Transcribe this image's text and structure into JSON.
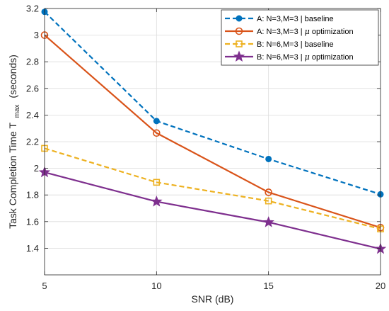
{
  "chart_data": {
    "type": "line",
    "title": "",
    "xlabel": "SNR (dB)",
    "ylabel_main": "Task Completion Time T",
    "ylabel_sub": "max",
    "ylabel_unit": "(seconds)",
    "x": [
      5,
      10,
      15,
      20
    ],
    "xlim": [
      5,
      20
    ],
    "ylim": [
      1.2,
      3.2
    ],
    "xticks": [
      "5",
      "10",
      "15",
      "20"
    ],
    "yticks": [
      "1.4",
      "1.6",
      "1.8",
      "2",
      "2.2",
      "2.4",
      "2.6",
      "2.8",
      "3",
      "3.2"
    ],
    "grid": true,
    "legend_position": "top-right",
    "series": [
      {
        "legend_prefix": "A: N=3,M=3 | ",
        "legend_mu": "",
        "legend_suffix": "baseline",
        "values": [
          3.175,
          2.355,
          2.07,
          1.805
        ],
        "color": "#0072BD",
        "dash": "dashed",
        "marker": "dot"
      },
      {
        "legend_prefix": "A: N=3,M=3 | ",
        "legend_mu": "μ",
        "legend_suffix": " optimization",
        "values": [
          3.0,
          2.265,
          1.82,
          1.555
        ],
        "color": "#D95319",
        "dash": "solid",
        "marker": "circle"
      },
      {
        "legend_prefix": "B: N=6,M=3 | ",
        "legend_mu": "",
        "legend_suffix": "baseline",
        "values": [
          2.15,
          1.895,
          1.755,
          1.545
        ],
        "color": "#EDB120",
        "dash": "dashed",
        "marker": "square"
      },
      {
        "legend_prefix": "B: N=6,M=3 | ",
        "legend_mu": "μ",
        "legend_suffix": " optimization",
        "values": [
          1.97,
          1.75,
          1.595,
          1.395
        ],
        "color": "#7E2F8E",
        "dash": "solid",
        "marker": "star"
      }
    ]
  }
}
